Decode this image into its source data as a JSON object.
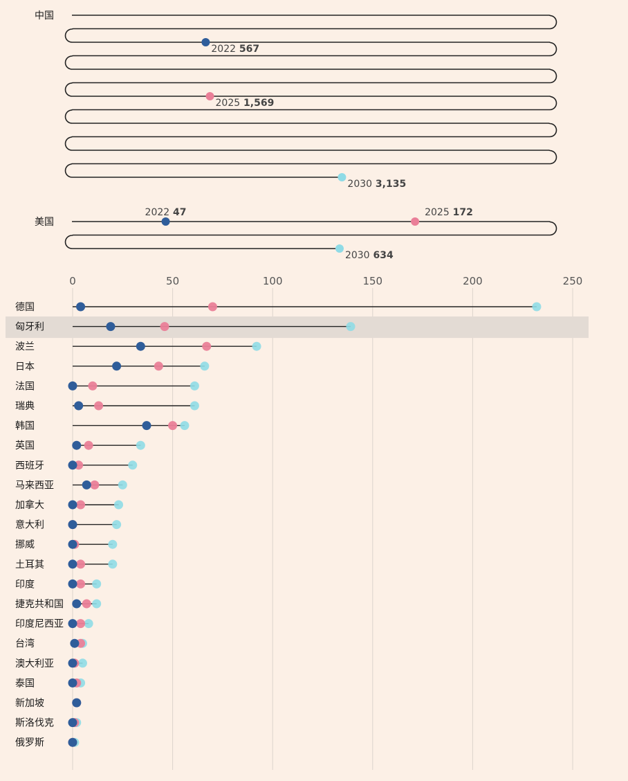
{
  "colors": {
    "background": "#fcf0e6",
    "year_2022": "#2f5d9a",
    "year_2025": "#ea7f98",
    "year_2030": "#8fdbe6",
    "line": "#222222",
    "grid": "#dcd3cc",
    "highlight_band": "#e3dbd4"
  },
  "chart_data": [
    {
      "type": "serpentine-dumbbell",
      "rows": [
        {
          "label": "中国",
          "points": [
            {
              "year": "2022",
              "value": 567,
              "value_label": "567"
            },
            {
              "year": "2025",
              "value": 1569,
              "value_label": "1,569"
            },
            {
              "year": "2030",
              "value": 3135,
              "value_label": "3,135"
            }
          ]
        },
        {
          "label": "美国",
          "points": [
            {
              "year": "2022",
              "value": 47,
              "value_label": "47"
            },
            {
              "year": "2025",
              "value": 172,
              "value_label": "172"
            },
            {
              "year": "2030",
              "value": 634,
              "value_label": "634"
            }
          ]
        }
      ]
    },
    {
      "type": "dumbbell",
      "xlim": [
        0,
        250
      ],
      "xticks": [
        "0",
        "50",
        "100",
        "150",
        "200",
        "250"
      ],
      "grid": true,
      "highlighted": "匈牙利",
      "series": [
        {
          "name": "2022"
        },
        {
          "name": "2025"
        },
        {
          "name": "2030"
        }
      ],
      "rows": [
        {
          "label": "德国",
          "v2022": 4,
          "v2025": 70,
          "v2030": 232
        },
        {
          "label": "匈牙利",
          "v2022": 19,
          "v2025": 46,
          "v2030": 139
        },
        {
          "label": "波兰",
          "v2022": 34,
          "v2025": 67,
          "v2030": 92
        },
        {
          "label": "日本",
          "v2022": 22,
          "v2025": 43,
          "v2030": 66
        },
        {
          "label": "法国",
          "v2022": 0,
          "v2025": 10,
          "v2030": 61
        },
        {
          "label": "瑞典",
          "v2022": 3,
          "v2025": 13,
          "v2030": 61
        },
        {
          "label": "韩国",
          "v2022": 37,
          "v2025": 50,
          "v2030": 56
        },
        {
          "label": "英国",
          "v2022": 2,
          "v2025": 8,
          "v2030": 34
        },
        {
          "label": "西班牙",
          "v2022": 0,
          "v2025": 3,
          "v2030": 30
        },
        {
          "label": "马来西亚",
          "v2022": 7,
          "v2025": 11,
          "v2030": 25
        },
        {
          "label": "加拿大",
          "v2022": 0,
          "v2025": 4,
          "v2030": 23
        },
        {
          "label": "意大利",
          "v2022": 0,
          "v2025": 0,
          "v2030": 22
        },
        {
          "label": "挪威",
          "v2022": 0,
          "v2025": 1,
          "v2030": 20
        },
        {
          "label": "土耳其",
          "v2022": 0,
          "v2025": 4,
          "v2030": 20
        },
        {
          "label": "印度",
          "v2022": 0,
          "v2025": 4,
          "v2030": 12
        },
        {
          "label": "捷克共和国",
          "v2022": 2,
          "v2025": 7,
          "v2030": 12
        },
        {
          "label": "印度尼西亚",
          "v2022": 0,
          "v2025": 4,
          "v2030": 8
        },
        {
          "label": "台湾",
          "v2022": 1,
          "v2025": 4,
          "v2030": 5
        },
        {
          "label": "澳大利亚",
          "v2022": 0,
          "v2025": 1,
          "v2030": 5
        },
        {
          "label": "泰国",
          "v2022": 0,
          "v2025": 2,
          "v2030": 4
        },
        {
          "label": "新加坡",
          "v2022": 2,
          "v2025": 2,
          "v2030": 2
        },
        {
          "label": "斯洛伐克",
          "v2022": 0,
          "v2025": 1,
          "v2030": 2
        },
        {
          "label": "俄罗斯",
          "v2022": 0,
          "v2025": 0,
          "v2030": 1
        }
      ]
    }
  ]
}
